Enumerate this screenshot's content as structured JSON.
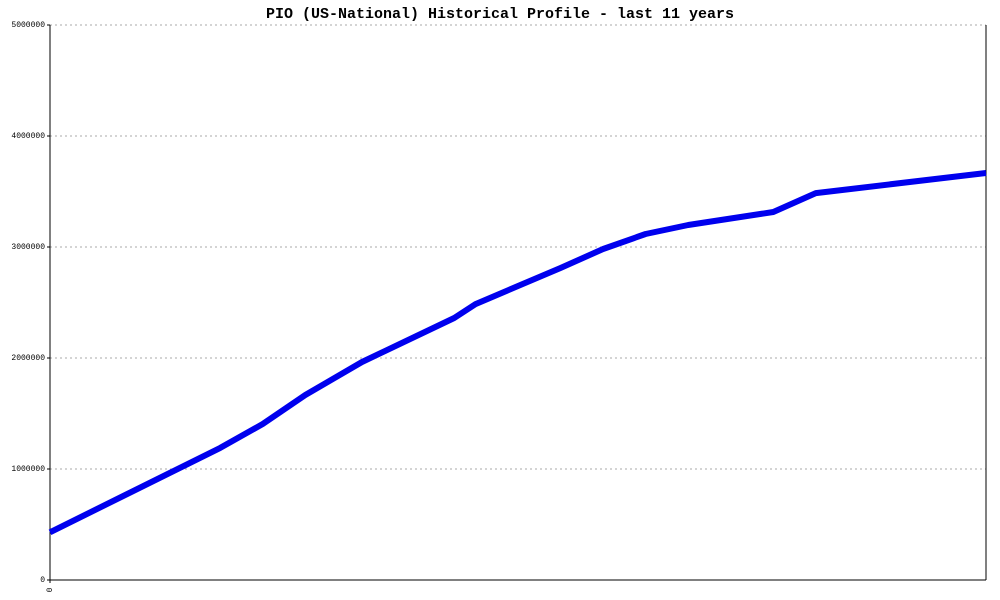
{
  "chart_data": {
    "type": "line",
    "title": "PIO (US-National) Historical Profile - last 11 years",
    "x": [
      0,
      24,
      30,
      36,
      44,
      57,
      60,
      66,
      72,
      78,
      84,
      90,
      102,
      108,
      132
    ],
    "values": [
      430000,
      1190000,
      1405000,
      1667000,
      1964000,
      2360000,
      2486000,
      2649000,
      2811000,
      2982000,
      3117000,
      3198000,
      3315000,
      3486000,
      3667000
    ],
    "color": "#0000ee",
    "xlim": [
      0,
      132
    ],
    "xticks": [
      0
    ],
    "ylim": [
      0,
      5000000
    ],
    "yticks": [
      0,
      1000000,
      2000000,
      3000000,
      4000000,
      5000000
    ],
    "grid": true
  }
}
